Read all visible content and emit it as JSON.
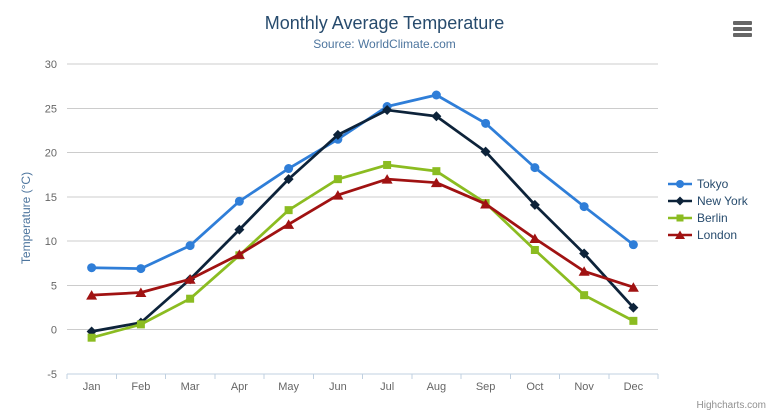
{
  "credit": "Highcharts.com",
  "chart_data": {
    "type": "line",
    "title": "Monthly Average Temperature",
    "subtitle": "Source: WorldClimate.com",
    "ylabel": "Temperature (°C)",
    "xlabel": "",
    "ylim": [
      -5,
      30
    ],
    "yticks": [
      -5,
      0,
      5,
      10,
      15,
      20,
      25,
      30
    ],
    "grid": true,
    "legend_position": "right",
    "categories": [
      "Jan",
      "Feb",
      "Mar",
      "Apr",
      "May",
      "Jun",
      "Jul",
      "Aug",
      "Sep",
      "Oct",
      "Nov",
      "Dec"
    ],
    "series": [
      {
        "name": "Tokyo",
        "color": "#2f7ed8",
        "marker": "circle",
        "values": [
          7.0,
          6.9,
          9.5,
          14.5,
          18.2,
          21.5,
          25.2,
          26.5,
          23.3,
          18.3,
          13.9,
          9.6
        ]
      },
      {
        "name": "New York",
        "color": "#0d233a",
        "marker": "diamond",
        "values": [
          -0.2,
          0.8,
          5.7,
          11.3,
          17.0,
          22.0,
          24.8,
          24.1,
          20.1,
          14.1,
          8.6,
          2.5
        ]
      },
      {
        "name": "Berlin",
        "color": "#8bbc21",
        "marker": "square",
        "values": [
          -0.9,
          0.6,
          3.5,
          8.4,
          13.5,
          17.0,
          18.6,
          17.9,
          14.3,
          9.0,
          3.9,
          1.0
        ]
      },
      {
        "name": "London",
        "color": "#a01212",
        "marker": "triangle",
        "values": [
          3.9,
          4.2,
          5.7,
          8.5,
          11.9,
          15.2,
          17.0,
          16.6,
          14.2,
          10.3,
          6.6,
          4.8
        ]
      }
    ],
    "axis_colors": {
      "grid": "#cccccc",
      "axis_line": "#c0d0e0",
      "labels": "#666666"
    }
  }
}
